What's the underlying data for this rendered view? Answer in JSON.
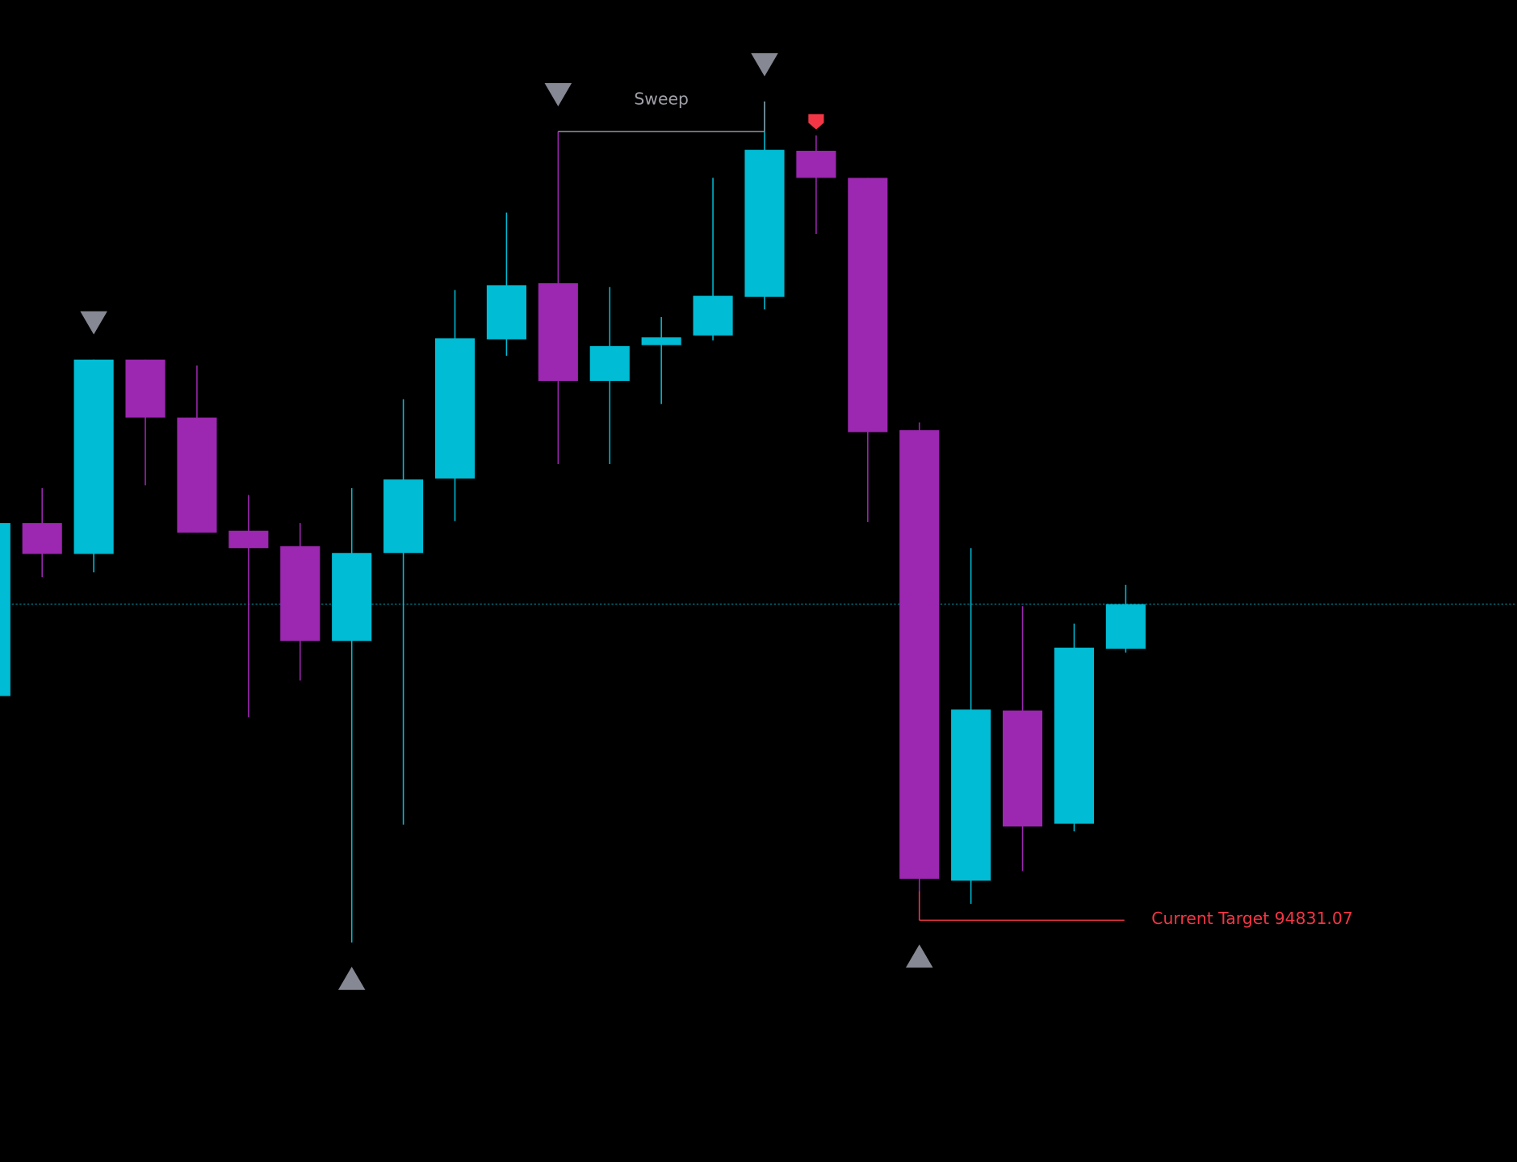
{
  "chart_data": {
    "type": "candlestick",
    "up_color": "#00bcd4",
    "down_color": "#9c27b0",
    "ylim": [
      92330,
      104350
    ],
    "series": {
      "open": [
        97150,
        98940,
        98620,
        100630,
        100030,
        98860,
        98700,
        97720,
        98630,
        99400,
        100840,
        101420,
        100410,
        100780,
        100880,
        101280,
        102790,
        102510,
        99900,
        95240,
        97000,
        95830,
        97640
      ],
      "high": [
        98940,
        99300,
        100630,
        100630,
        100570,
        99230,
        98940,
        99300,
        100220,
        101350,
        102150,
        102990,
        101380,
        101070,
        102510,
        103300,
        102950,
        102510,
        99980,
        98680,
        98080,
        97900,
        98300
      ],
      "low": [
        97150,
        98380,
        98430,
        99330,
        98840,
        96930,
        97310,
        94600,
        95820,
        98960,
        100670,
        99550,
        99550,
        100170,
        100830,
        101150,
        101930,
        98950,
        94831.07,
        95000,
        95340,
        95750,
        97600
      ],
      "close": [
        98940,
        98620,
        100630,
        100030,
        98840,
        98680,
        97720,
        98630,
        99390,
        100850,
        101400,
        100410,
        100770,
        100860,
        101290,
        102800,
        102510,
        99880,
        95260,
        97010,
        95800,
        97650,
        98100
      ]
    },
    "swing_highs": [
      2,
      11,
      15
    ],
    "swing_lows": [
      7,
      18
    ],
    "signal": {
      "index": 16,
      "color": "#f23645"
    },
    "sweep": {
      "label": "Sweep",
      "from": 11,
      "to": 15
    },
    "target": {
      "label": "Current Target 94831.07",
      "value": 94831.07,
      "from": 18,
      "color": "#f23645"
    }
  }
}
